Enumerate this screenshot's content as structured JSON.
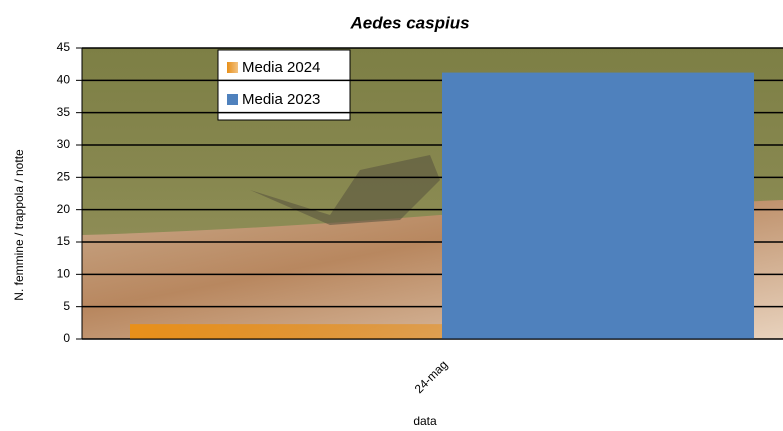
{
  "chart_data": {
    "type": "bar",
    "title": "Aedes caspius",
    "x_label": "data",
    "y_label": "N. femmine / trappola / notte",
    "categories": [
      "24-mag"
    ],
    "series": [
      {
        "name": "Media 2024",
        "color": "#e8901a",
        "values": [
          2.3
        ]
      },
      {
        "name": "Media 2023",
        "color": "#4f81bd",
        "values": [
          41.2
        ]
      }
    ],
    "ylim": [
      0,
      45
    ],
    "yticks": [
      0,
      5,
      10,
      15,
      20,
      25,
      30,
      35,
      40,
      45
    ],
    "grid": true
  }
}
